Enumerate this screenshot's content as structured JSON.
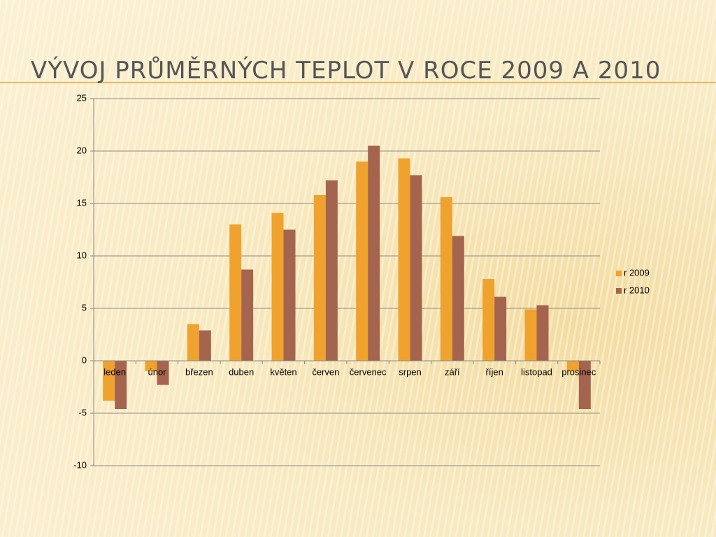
{
  "chart_data": {
    "type": "bar",
    "title": "VÝVOJ PRŮMĚRNÝCH TEPLOT V ROCE 2009 A 2010",
    "categories": [
      "leden",
      "únor",
      "březen",
      "duben",
      "květen",
      "červen",
      "červenec",
      "srpen",
      "září",
      "říjen",
      "listopad",
      "prosinec"
    ],
    "series": [
      {
        "name": "r 2009",
        "color": "#f0a22e",
        "values": [
          -3.8,
          -1.0,
          3.5,
          13.0,
          14.1,
          15.8,
          19.0,
          19.3,
          15.6,
          7.8,
          4.9,
          -1.0
        ]
      },
      {
        "name": "r 2010",
        "color": "#a5644e",
        "values": [
          -4.6,
          -2.3,
          2.9,
          8.7,
          12.5,
          17.2,
          20.5,
          17.7,
          11.9,
          6.1,
          5.3,
          -4.6
        ]
      }
    ],
    "ylim": [
      -10,
      25
    ],
    "yticks": [
      -10,
      -5,
      0,
      5,
      10,
      15,
      20,
      25
    ],
    "grid": true,
    "legend": "right"
  }
}
